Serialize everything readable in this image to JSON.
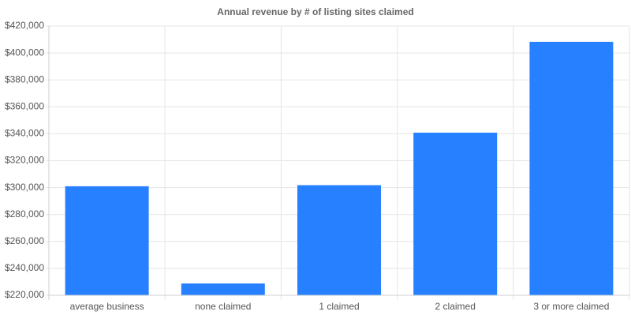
{
  "chart_data": {
    "type": "bar",
    "title": "Annual revenue by # of listing sites claimed",
    "categories": [
      "average business",
      "none claimed",
      "1 claimed",
      "2 claimed",
      "3 or more claimed"
    ],
    "values": [
      301000,
      228800,
      301800,
      340800,
      408300
    ],
    "color": "#2680ff",
    "ylim": [
      220000,
      420000
    ],
    "yticks": [
      {
        "value": 220000,
        "label": "$220,000"
      },
      {
        "value": 240000,
        "label": "$240,000"
      },
      {
        "value": 260000,
        "label": "$260,000"
      },
      {
        "value": 280000,
        "label": "$280,000"
      },
      {
        "value": 300000,
        "label": "$300,000"
      },
      {
        "value": 320000,
        "label": "$320,000"
      },
      {
        "value": 340000,
        "label": "$340,000"
      },
      {
        "value": 360000,
        "label": "$360,000"
      },
      {
        "value": 380000,
        "label": "$380,000"
      },
      {
        "value": 400000,
        "label": "$400,000"
      },
      {
        "value": 420000,
        "label": "$420,000"
      }
    ],
    "grid": true
  }
}
